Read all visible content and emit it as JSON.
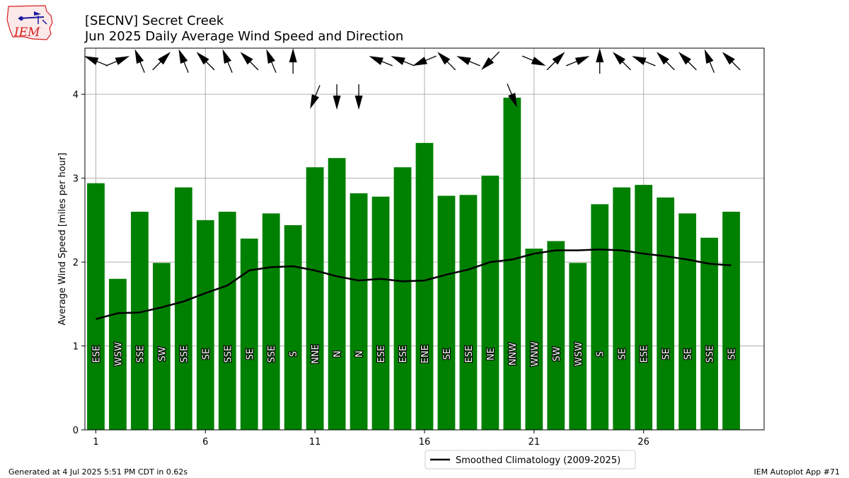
{
  "header": {
    "title_line1": "[SECNV] Secret Creek",
    "title_line2": "Jun 2025 Daily Average Wind Speed and Direction"
  },
  "logo": {
    "text": "IEM"
  },
  "footer": {
    "left": "Generated at 4 Jul 2025 5:51 PM CDT in 0.62s",
    "right": "IEM Autoplot App #71"
  },
  "colors": {
    "bar": "#008000",
    "line": "#000000",
    "grid": "#b0b0b0"
  },
  "chart_data": {
    "type": "bar",
    "xlabel": "",
    "ylabel": "Average Wind Speed [miles per hour]",
    "xlim": [
      0.5,
      31.5
    ],
    "ylim": [
      0,
      4.55
    ],
    "xticks": [
      1,
      6,
      11,
      16,
      21,
      26
    ],
    "yticks": [
      0,
      1,
      2,
      3,
      4
    ],
    "grid": true,
    "legend_position": "bottom-center",
    "days": [
      1,
      2,
      3,
      4,
      5,
      6,
      7,
      8,
      9,
      10,
      11,
      12,
      13,
      14,
      15,
      16,
      17,
      18,
      19,
      20,
      21,
      22,
      23,
      24,
      25,
      26,
      27,
      28,
      29,
      30
    ],
    "series": [
      {
        "type": "bar",
        "values": [
          2.94,
          1.8,
          2.6,
          1.99,
          2.89,
          2.5,
          2.6,
          2.28,
          2.58,
          2.44,
          3.13,
          3.24,
          2.82,
          2.78,
          3.13,
          3.42,
          2.79,
          2.8,
          3.03,
          3.96,
          2.16,
          2.25,
          1.99,
          2.69,
          2.89,
          2.92,
          2.77,
          2.58,
          2.29,
          2.6
        ],
        "directions": [
          "ESE",
          "WSW",
          "SSE",
          "SW",
          "SSE",
          "SE",
          "SSE",
          "SE",
          "SSE",
          "S",
          "NNE",
          "N",
          "N",
          "ESE",
          "ESE",
          "ENE",
          "SE",
          "ESE",
          "NE",
          "NNW",
          "WNW",
          "SW",
          "WSW",
          "S",
          "SE",
          "ESE",
          "SE",
          "SE",
          "SSE",
          "SE"
        ]
      },
      {
        "type": "line",
        "name": "Smoothed Climatology (2009-2025)",
        "values": [
          1.32,
          1.39,
          1.4,
          1.46,
          1.53,
          1.63,
          1.72,
          1.9,
          1.94,
          1.95,
          1.9,
          1.83,
          1.78,
          1.8,
          1.77,
          1.78,
          1.85,
          1.91,
          2.0,
          2.03,
          2.1,
          2.14,
          2.14,
          2.15,
          2.14,
          2.1,
          2.07,
          2.03,
          1.98,
          1.96
        ]
      }
    ]
  }
}
